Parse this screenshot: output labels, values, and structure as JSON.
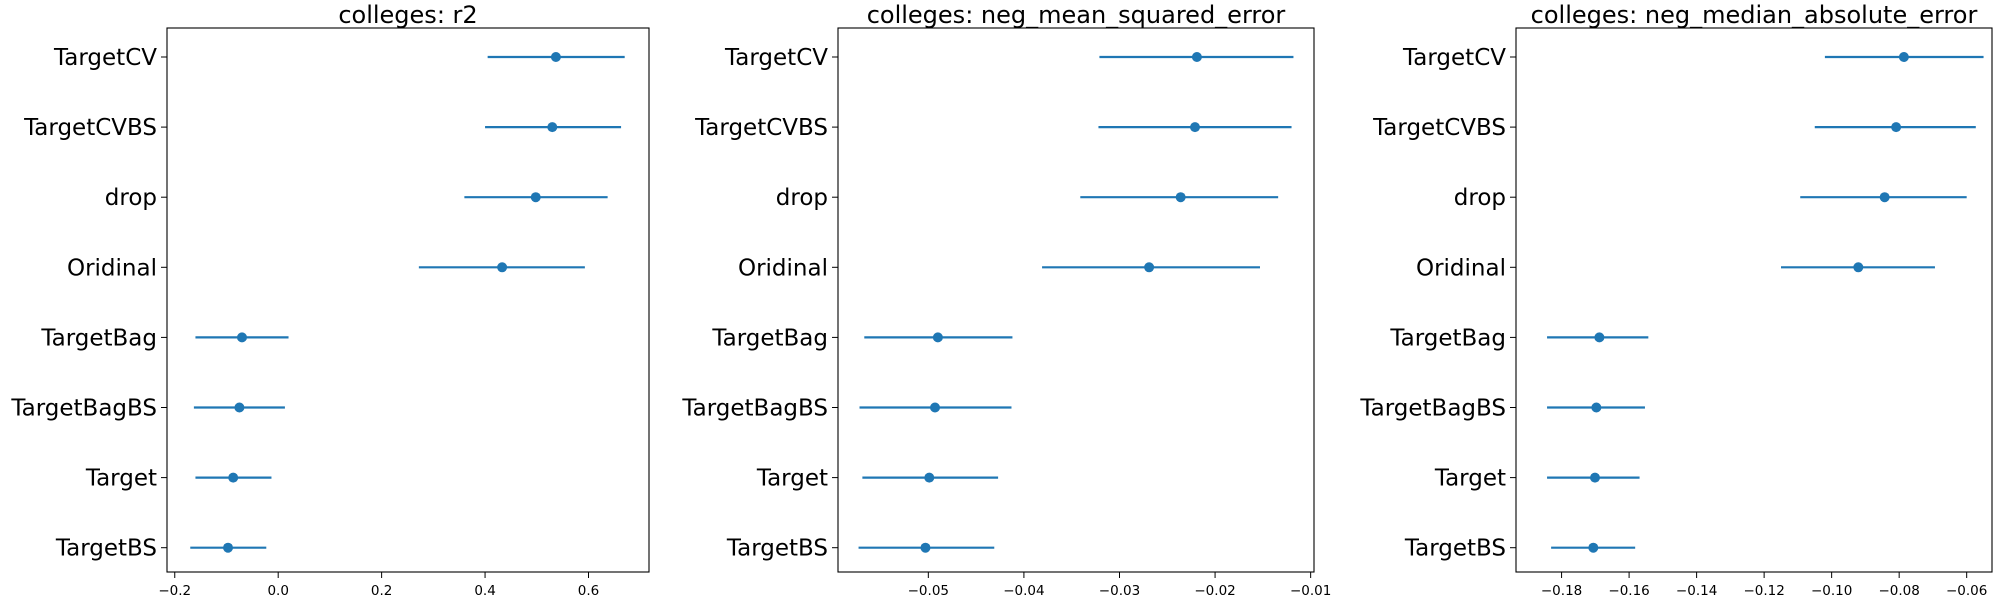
{
  "chart_data": [
    {
      "type": "errorbar",
      "title": "colleges: r2",
      "categories": [
        "TargetCV",
        "TargetCVBS",
        "drop",
        "Oridinal",
        "TargetBag",
        "TargetBagBS",
        "Target",
        "TargetBS"
      ],
      "means": [
        0.537,
        0.53,
        0.498,
        0.433,
        -0.07,
        -0.075,
        -0.087,
        -0.097
      ],
      "lower": [
        0.405,
        0.4,
        0.36,
        0.272,
        -0.16,
        -0.163,
        -0.16,
        -0.17
      ],
      "upper": [
        0.67,
        0.663,
        0.637,
        0.593,
        0.02,
        0.013,
        -0.013,
        -0.023
      ],
      "xlim": [
        -0.215,
        0.717
      ],
      "xticks": [
        -0.2,
        0.0,
        0.2,
        0.4,
        0.6
      ],
      "xtick_labels": [
        "−0.2",
        "0.0",
        "0.2",
        "0.4",
        "0.6"
      ],
      "xlabel": "",
      "ylabel": "",
      "grid": false
    },
    {
      "type": "errorbar",
      "title": "colleges: neg_mean_squared_error",
      "categories": [
        "TargetCV",
        "TargetCVBS",
        "drop",
        "Oridinal",
        "TargetBag",
        "TargetBagBS",
        "Target",
        "TargetBS"
      ],
      "means": [
        -0.0219,
        -0.0221,
        -0.0236,
        -0.0269,
        -0.049,
        -0.0493,
        -0.0499,
        -0.0503
      ],
      "lower": [
        -0.0321,
        -0.0322,
        -0.0341,
        -0.0381,
        -0.0567,
        -0.0572,
        -0.0569,
        -0.0573
      ],
      "upper": [
        -0.0118,
        -0.012,
        -0.0134,
        -0.0153,
        -0.0412,
        -0.0413,
        -0.0427,
        -0.0431
      ],
      "xlim": [
        -0.05945,
        -0.00965
      ],
      "xticks": [
        -0.05,
        -0.04,
        -0.03,
        -0.02,
        -0.01
      ],
      "xtick_labels": [
        "−0.05",
        "−0.04",
        "−0.03",
        "−0.02",
        "−0.01"
      ],
      "xlabel": "",
      "ylabel": "",
      "grid": false
    },
    {
      "type": "errorbar",
      "title": "colleges: neg_median_absolute_error",
      "categories": [
        "TargetCV",
        "TargetCVBS",
        "drop",
        "Oridinal",
        "TargetBag",
        "TargetBagBS",
        "Target",
        "TargetBS"
      ],
      "means": [
        -0.0786,
        -0.0809,
        -0.0843,
        -0.0921,
        -0.1688,
        -0.1697,
        -0.1701,
        -0.1706
      ],
      "lower": [
        -0.102,
        -0.105,
        -0.1093,
        -0.115,
        -0.1843,
        -0.1843,
        -0.1843,
        -0.1831
      ],
      "upper": [
        -0.055,
        -0.0573,
        -0.06,
        -0.0694,
        -0.1543,
        -0.1553,
        -0.1569,
        -0.1582
      ],
      "xlim": [
        -0.1935,
        -0.0525
      ],
      "xticks": [
        -0.18,
        -0.16,
        -0.14,
        -0.12,
        -0.1,
        -0.08,
        -0.06
      ],
      "xtick_labels": [
        "−0.18",
        "−0.16",
        "−0.14",
        "−0.12",
        "−0.10",
        "−0.08",
        "−0.06"
      ],
      "xlabel": "",
      "ylabel": "",
      "grid": false
    }
  ],
  "colors": {
    "series": "#1f77b4",
    "axes": "#000000",
    "background": "#ffffff"
  }
}
